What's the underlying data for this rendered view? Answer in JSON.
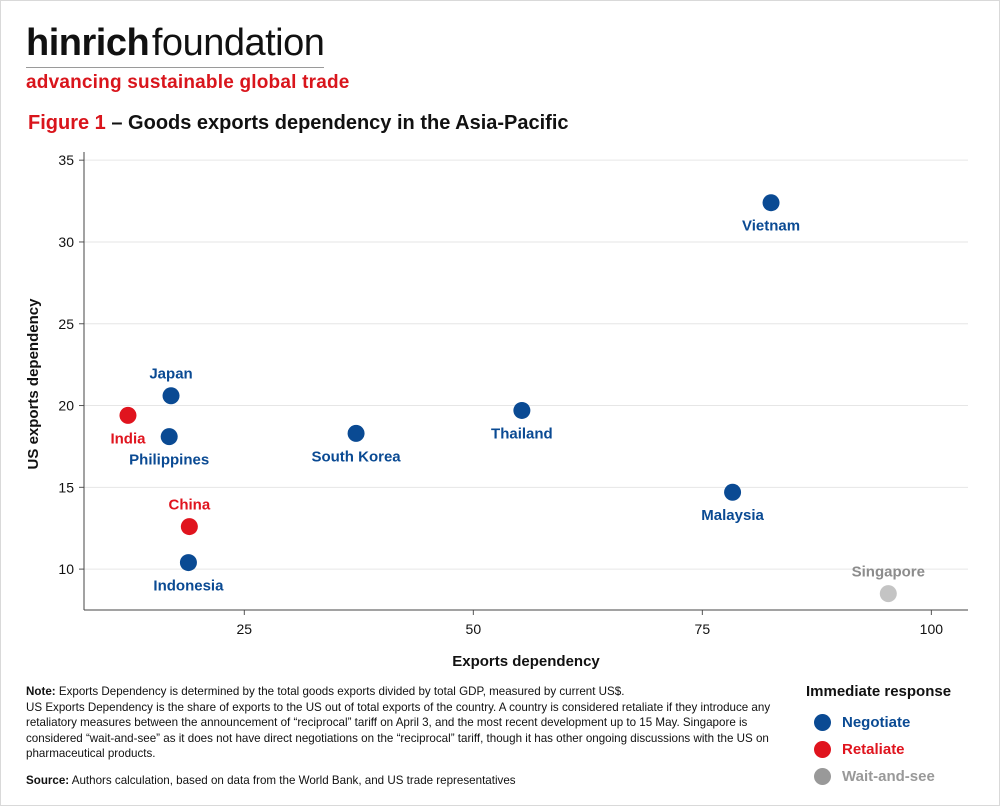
{
  "branding": {
    "name_bold": "hinrich",
    "name_regular": "foundation",
    "tagline": "advancing sustainable global trade"
  },
  "figure": {
    "number": "Figure 1",
    "title": "– Goods exports dependency in the Asia-Pacific"
  },
  "colors": {
    "negotiate": "#0a4a93",
    "retaliate": "#e0141e",
    "wait": "#999999",
    "wait_label": "#8c8c8c",
    "wait_dot_chart": "#c4c4c4"
  },
  "chart_data": {
    "type": "scatter",
    "title": "Goods exports dependency in the Asia-Pacific",
    "xlabel": "Exports dependency",
    "ylabel": "US exports dependency",
    "xlim": [
      7.5,
      104
    ],
    "ylim": [
      7.5,
      35.5
    ],
    "xticks": [
      25,
      50,
      75,
      100
    ],
    "yticks": [
      10,
      15,
      20,
      25,
      30,
      35
    ],
    "grid": "horizontal",
    "legend_title": "Immediate response",
    "legend_position": "bottom-right",
    "series": [
      {
        "name": "Negotiate",
        "key": "negotiate"
      },
      {
        "name": "Retaliate",
        "key": "retaliate"
      },
      {
        "name": "Wait-and-see",
        "key": "wait"
      }
    ],
    "points": [
      {
        "label": "Vietnam",
        "x": 82.5,
        "y": 32.4,
        "group": "negotiate",
        "label_pos": "below"
      },
      {
        "label": "Japan",
        "x": 17.0,
        "y": 20.6,
        "group": "negotiate",
        "label_pos": "above"
      },
      {
        "label": "India",
        "x": 12.3,
        "y": 19.4,
        "group": "retaliate",
        "label_pos": "below"
      },
      {
        "label": "Philippines",
        "x": 16.8,
        "y": 18.1,
        "group": "negotiate",
        "label_pos": "below"
      },
      {
        "label": "South Korea",
        "x": 37.2,
        "y": 18.3,
        "group": "negotiate",
        "label_pos": "below"
      },
      {
        "label": "Thailand",
        "x": 55.3,
        "y": 19.7,
        "group": "negotiate",
        "label_pos": "below"
      },
      {
        "label": "Malaysia",
        "x": 78.3,
        "y": 14.7,
        "group": "negotiate",
        "label_pos": "below"
      },
      {
        "label": "China",
        "x": 19.0,
        "y": 12.6,
        "group": "retaliate",
        "label_pos": "above"
      },
      {
        "label": "Indonesia",
        "x": 18.9,
        "y": 10.4,
        "group": "negotiate",
        "label_pos": "below"
      },
      {
        "label": "Singapore",
        "x": 95.3,
        "y": 8.5,
        "group": "wait",
        "label_pos": "above"
      }
    ]
  },
  "notes": {
    "note_label": "Note:",
    "note_line1": " Exports Dependency is determined by the total goods exports divided by total GDP, measured by current US$.",
    "note_line2": "US Exports Dependency is the share of exports to the US out of total exports of the country. A country is considered retaliate if they introduce any retaliatory measures between the announcement of “reciprocal” tariff on April 3, and the most recent development up to 15 May. Singapore is considered “wait-and-see” as it does not have direct negotiations on the “reciprocal” tariff, though it has other ongoing discussions with the US on pharmaceutical products.",
    "source_label": "Source:",
    "source_text": " Authors calculation, based on data from the World Bank, and US trade representatives"
  },
  "legend": {
    "title": "Immediate response",
    "items": [
      {
        "label": "Negotiate",
        "key": "negotiate"
      },
      {
        "label": "Retaliate",
        "key": "retaliate"
      },
      {
        "label": "Wait-and-see",
        "key": "wait"
      }
    ]
  }
}
